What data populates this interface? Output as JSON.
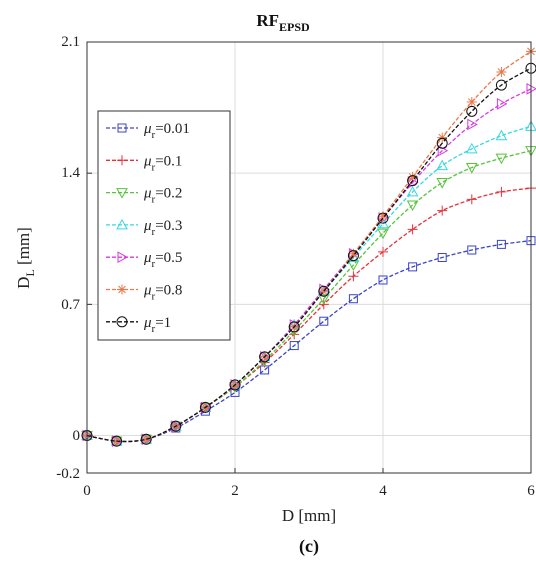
{
  "chart_data": {
    "type": "line",
    "title": "RF",
    "title_subscript": "EPSD",
    "panel_label": "(c)",
    "xlabel": "D [mm]",
    "ylabel_main": "D",
    "ylabel_sub": "L",
    "ylabel_unit": " [mm]",
    "xlim": [
      0,
      6
    ],
    "ylim": [
      -0.2,
      2.1
    ],
    "xticks": [
      "0",
      "2",
      "4",
      "6"
    ],
    "xtick_values": [
      0,
      2,
      4,
      6
    ],
    "yticks": [
      "-0.2",
      "0",
      "0.7",
      "1.4",
      "2.1"
    ],
    "ytick_values": [
      -0.2,
      0,
      0.7,
      1.4,
      2.1
    ],
    "grid": true,
    "legend_position": "center-left",
    "legend_symbol": "μ",
    "legend_sub": "r",
    "x": [
      0,
      0.4,
      0.8,
      1.2,
      1.6,
      2.0,
      2.4,
      2.8,
      3.2,
      3.6,
      4.0,
      4.4,
      4.8,
      5.2,
      5.6,
      6.0
    ],
    "series": [
      {
        "name": "=0.01",
        "color": "#3a45c8",
        "marker": "square",
        "values": [
          0,
          -0.03,
          -0.02,
          0.04,
          0.13,
          0.23,
          0.35,
          0.48,
          0.61,
          0.73,
          0.83,
          0.9,
          0.95,
          0.99,
          1.02,
          1.04
        ]
      },
      {
        "name": "=0.1",
        "color": "#e8303a",
        "marker": "plus",
        "values": [
          0,
          -0.03,
          -0.02,
          0.05,
          0.15,
          0.26,
          0.39,
          0.54,
          0.7,
          0.85,
          0.98,
          1.1,
          1.2,
          1.26,
          1.3,
          1.32
        ]
      },
      {
        "name": "=0.2",
        "color": "#55c43a",
        "marker": "triangle-down",
        "values": [
          0,
          -0.03,
          -0.02,
          0.05,
          0.15,
          0.26,
          0.4,
          0.56,
          0.73,
          0.91,
          1.08,
          1.23,
          1.35,
          1.43,
          1.48,
          1.52
        ]
      },
      {
        "name": "=0.3",
        "color": "#37d8e0",
        "marker": "triangle-up",
        "values": [
          0,
          -0.03,
          -0.02,
          0.05,
          0.15,
          0.27,
          0.42,
          0.59,
          0.77,
          0.95,
          1.13,
          1.3,
          1.44,
          1.53,
          1.6,
          1.65
        ]
      },
      {
        "name": "=0.5",
        "color": "#d83ae0",
        "marker": "triangle-right",
        "values": [
          0,
          -0.03,
          -0.02,
          0.05,
          0.15,
          0.27,
          0.42,
          0.59,
          0.78,
          0.97,
          1.16,
          1.35,
          1.52,
          1.66,
          1.77,
          1.85
        ]
      },
      {
        "name": "=0.8",
        "color": "#e8784a",
        "marker": "asterisk",
        "values": [
          0,
          -0.03,
          -0.02,
          0.05,
          0.15,
          0.27,
          0.42,
          0.58,
          0.77,
          0.97,
          1.17,
          1.38,
          1.59,
          1.78,
          1.94,
          2.05
        ]
      },
      {
        "name": "=1",
        "color": "#111111",
        "marker": "circle",
        "values": [
          0,
          -0.03,
          -0.02,
          0.05,
          0.15,
          0.27,
          0.42,
          0.58,
          0.77,
          0.96,
          1.16,
          1.36,
          1.56,
          1.73,
          1.87,
          1.96
        ]
      }
    ]
  }
}
